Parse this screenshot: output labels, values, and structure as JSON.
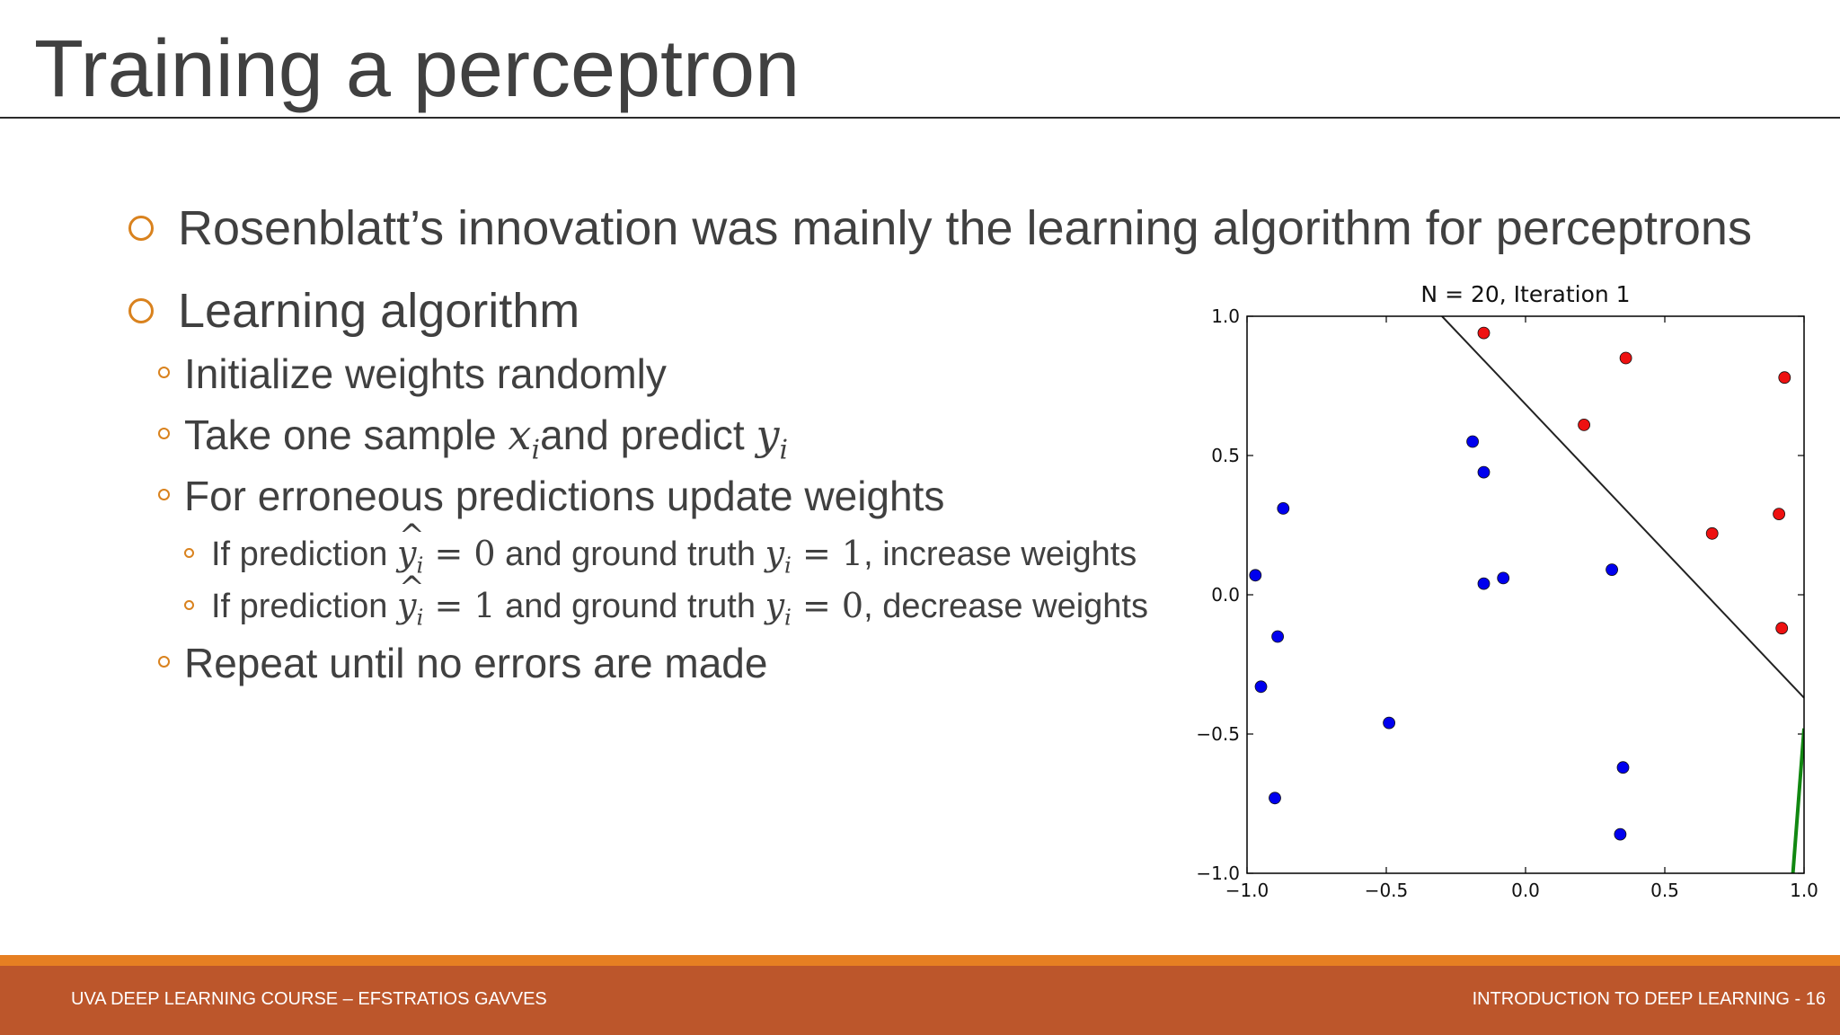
{
  "slide": {
    "title": "Training a perceptron",
    "bullet1": "Rosenblatt’s innovation was mainly the learning algorithm for perceptrons",
    "bullet2": "Learning algorithm",
    "sub1": "Initialize weights randomly",
    "sub2": {
      "pre": "Take one sample ",
      "x": "x",
      "xi": "i",
      "mid": "and predict ",
      "y": "y",
      "yi": "i"
    },
    "sub3": "For erroneous predictions update weights",
    "subsub1": {
      "pre": "If prediction ",
      "yhat": "y",
      "i": "i",
      "eq": " = 0",
      "mid": " and ground truth ",
      "y": "y",
      "i2": "i",
      "eq2": " = 1",
      "post": ", increase weights"
    },
    "subsub2": {
      "pre": "If prediction ",
      "yhat": "y",
      "i": "i",
      "eq": " = 1",
      "mid": " and ground truth ",
      "y": "y",
      "i2": "i",
      "eq2": " = 0",
      "post": ", decrease weights"
    },
    "sub4": "Repeat until no errors are made"
  },
  "footer": {
    "left": "UVA DEEP LEARNING COURSE – EFSTRATIOS GAVVES",
    "right": "INTRODUCTION TO DEEP LEARNING - 16"
  },
  "colors": {
    "accent": "#e67f22",
    "footer": "#bc562b",
    "blue": "#0000ee",
    "red": "#ee1111",
    "green": "#118811"
  },
  "chart_data": {
    "type": "scatter",
    "title": "N = 20, Iteration 1",
    "xlim": [
      -1.0,
      1.0
    ],
    "ylim": [
      -1.0,
      1.0
    ],
    "xticks": [
      "−1.0",
      "−0.5",
      "0.0",
      "0.5",
      "1.0"
    ],
    "yticks": [
      "−1.0",
      "−0.5",
      "0.0",
      "0.5",
      "1.0"
    ],
    "xtick_values": [
      -1.0,
      -0.5,
      0.0,
      0.5,
      1.0
    ],
    "ytick_values": [
      -1.0,
      -0.5,
      0.0,
      0.5,
      1.0
    ],
    "series": [
      {
        "color": "blue",
        "points": [
          [
            -0.87,
            0.31
          ],
          [
            -0.97,
            0.07
          ],
          [
            -0.89,
            -0.15
          ],
          [
            -0.95,
            -0.33
          ],
          [
            -0.9,
            -0.73
          ],
          [
            -0.49,
            -0.46
          ],
          [
            -0.19,
            0.55
          ],
          [
            -0.15,
            0.44
          ],
          [
            -0.15,
            0.04
          ],
          [
            -0.08,
            0.06
          ],
          [
            0.31,
            0.09
          ],
          [
            0.35,
            -0.62
          ],
          [
            0.34,
            -0.86
          ]
        ]
      },
      {
        "color": "red",
        "points": [
          [
            -0.15,
            0.94
          ],
          [
            0.36,
            0.85
          ],
          [
            0.21,
            0.61
          ],
          [
            0.93,
            0.78
          ],
          [
            0.67,
            0.22
          ],
          [
            0.91,
            0.29
          ],
          [
            0.92,
            -0.12
          ]
        ]
      }
    ],
    "lines": [
      {
        "color": "black",
        "from": [
          -0.3,
          1.0
        ],
        "to": [
          1.0,
          -0.37
        ]
      },
      {
        "color": "green",
        "from": [
          0.96,
          -1.0
        ],
        "to": [
          1.0,
          -0.48
        ]
      }
    ]
  }
}
